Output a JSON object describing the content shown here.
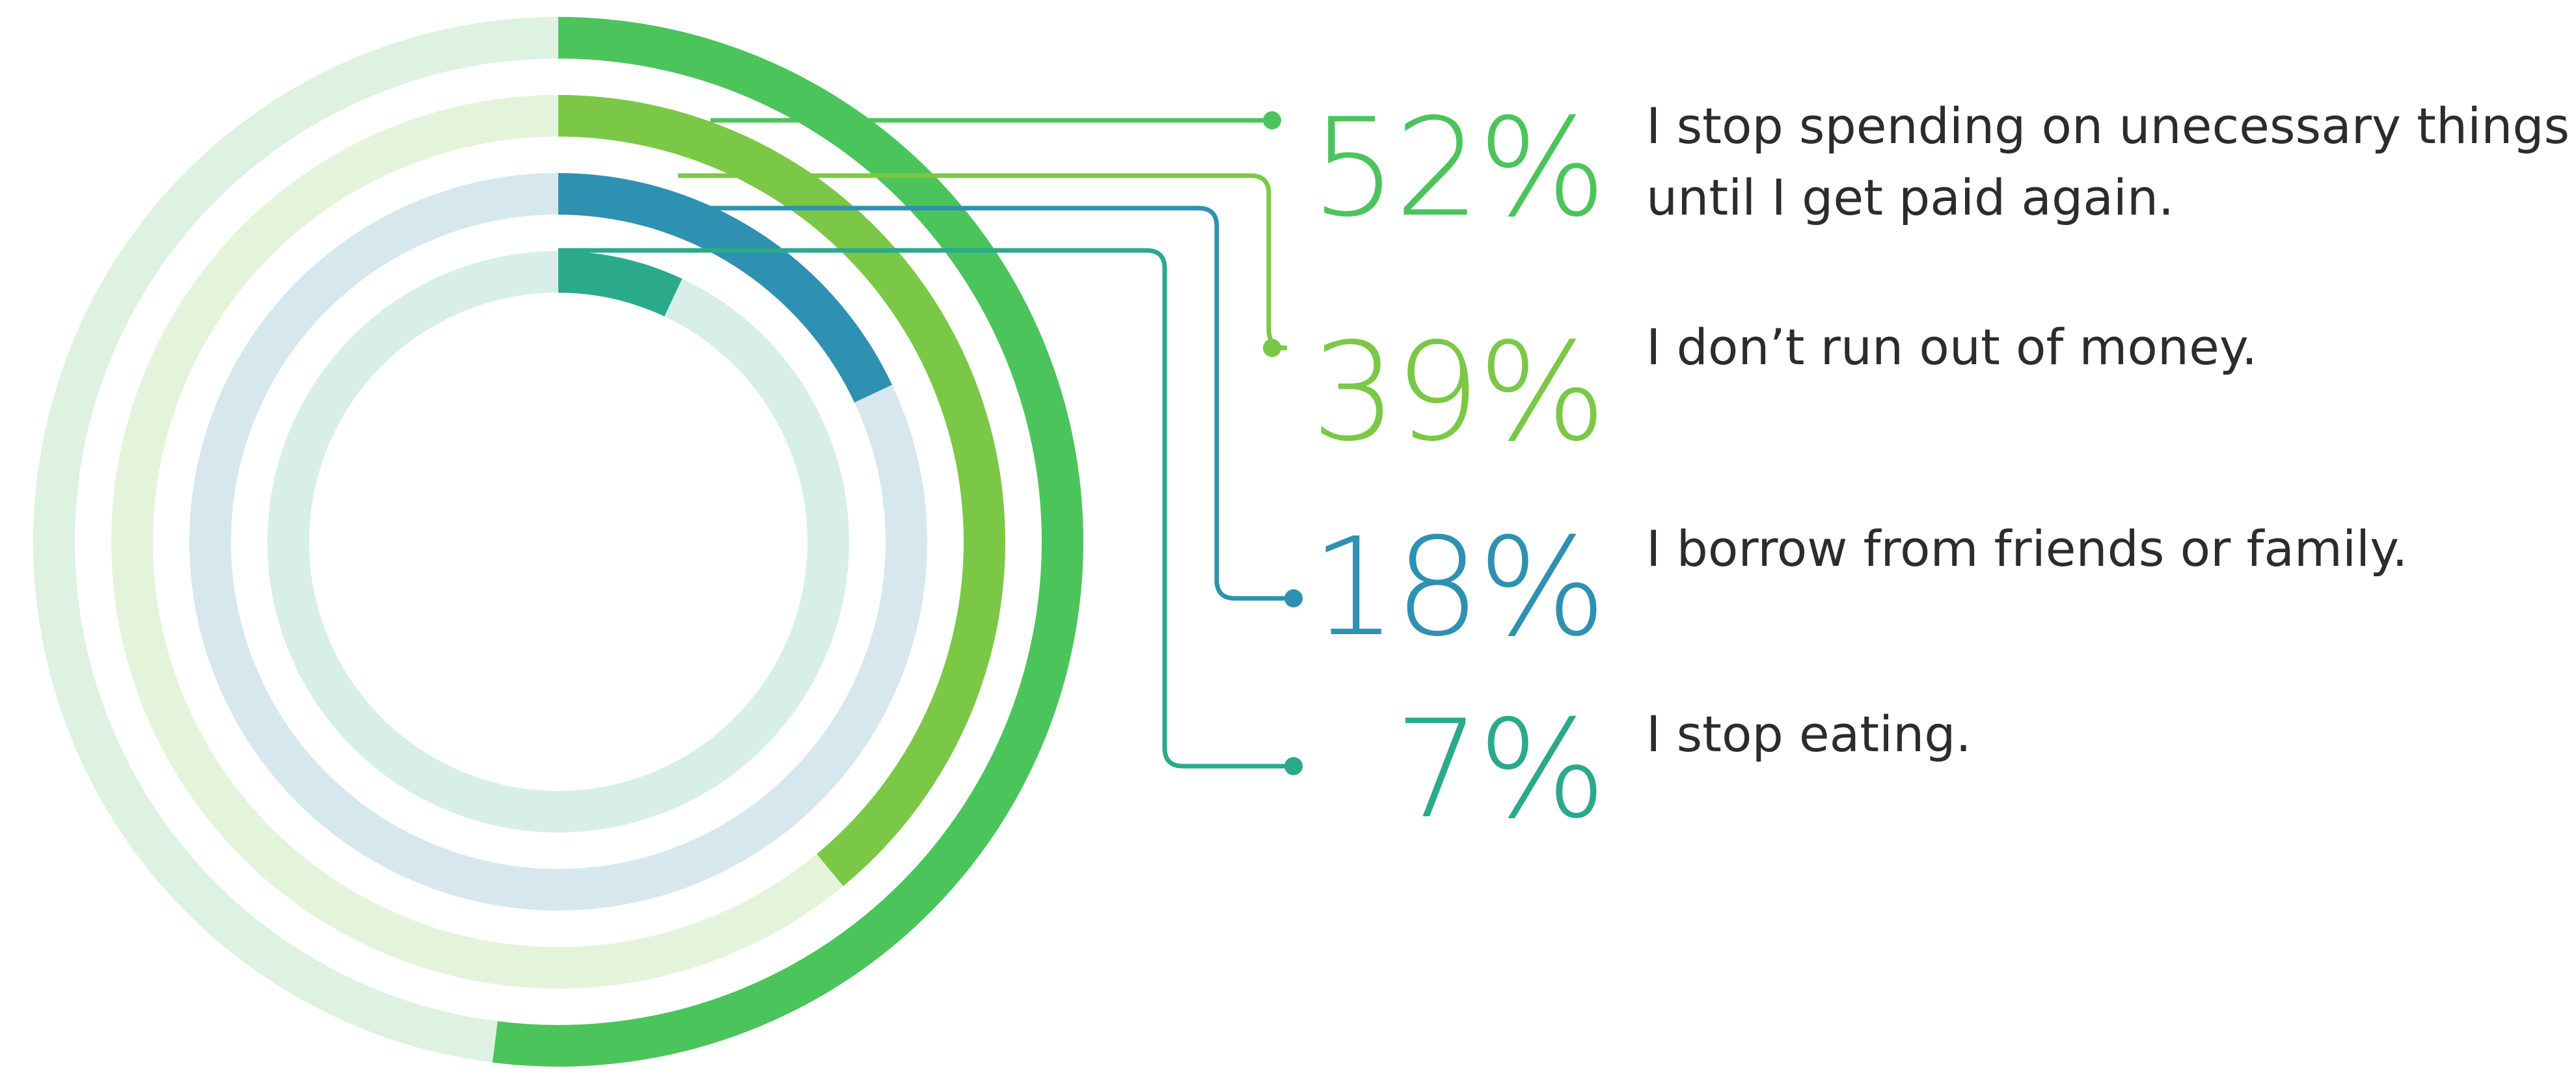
{
  "chart_data": {
    "type": "pie",
    "title": "",
    "series": [
      {
        "value": 52,
        "label": "52%",
        "description": [
          "I stop spending on unecessary things",
          "until I get paid again."
        ],
        "color": "#4cc45c",
        "track_color": "#ddf2e1"
      },
      {
        "value": 39,
        "label": "39%",
        "description": [
          "I don’t run out of money."
        ],
        "color": "#7bc846",
        "track_color": "#e3f4db"
      },
      {
        "value": 18,
        "label": "18%",
        "description": [
          "I borrow from friends or family."
        ],
        "color": "#2f91b1",
        "track_color": "#d6e8ee"
      },
      {
        "value": 7,
        "label": "7%",
        "description": [
          "I stop eating."
        ],
        "color": "#2aaa8a",
        "track_color": "#d7efe8"
      }
    ]
  }
}
